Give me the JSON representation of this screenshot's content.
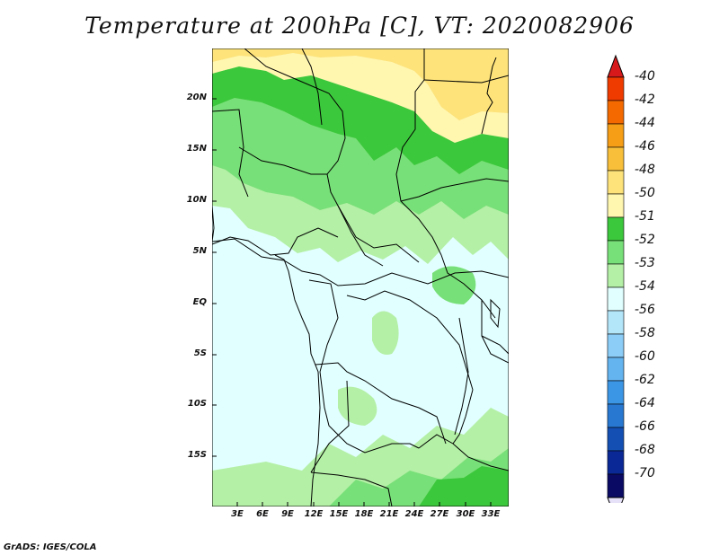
{
  "title": "Temperature at 200hPa [C], VT: 2020082906",
  "footer": "GrADS: IGES/COLA",
  "y_axis_labels": [
    "20N",
    "15N",
    "10N",
    "5N",
    "EQ",
    "5S",
    "10S",
    "15S"
  ],
  "x_axis_labels": [
    "3E",
    "6E",
    "9E",
    "12E",
    "15E",
    "18E",
    "21E",
    "24E",
    "27E",
    "30E",
    "33E"
  ],
  "colorbar": {
    "labels": [
      "-40",
      "-42",
      "-44",
      "-46",
      "-48",
      "-50",
      "-51",
      "-52",
      "-53",
      "-54",
      "-56",
      "-58",
      "-60",
      "-62",
      "-64",
      "-66",
      "-68",
      "-70"
    ],
    "colors": [
      "#d7191c",
      "#f03b00",
      "#f56a00",
      "#f59e16",
      "#f8c03a",
      "#fde37a",
      "#fff6b0",
      "#3cc83c",
      "#78e078",
      "#b4f0a6",
      "#e1ffff",
      "#b4e6fa",
      "#8ccdf8",
      "#64b4f0",
      "#3c96e6",
      "#2878d2",
      "#1450b4",
      "#0a2896",
      "#0a0a64",
      "#e6e0f8"
    ]
  },
  "map_colors": {
    "minus50": "#fde37a",
    "minus51": "#fff6b0",
    "minus52": "#3cc83c",
    "minus53": "#78e078",
    "minus54": "#b4f0a6",
    "minus56": "#e1ffff"
  }
}
